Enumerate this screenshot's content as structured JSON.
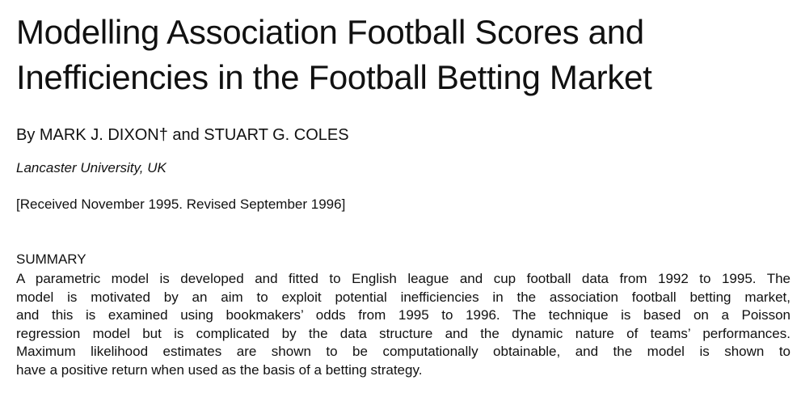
{
  "paper": {
    "title_lines": [
      "Modelling Association Football Scores and",
      "Inefficiencies in the Football Betting Market"
    ],
    "byline": "By MARK J. DIXON† and STUART G. COLES",
    "affiliation": "Lancaster University, UK",
    "received": "[Received November 1995. Revised September 1996]",
    "summary_heading": "SUMMARY",
    "summary_lines": [
      "A parametric model is developed and fitted to English league and cup football data from 1992 to 1995. The",
      "model is motivated by an aim to exploit potential inefficiencies in the association football betting market,",
      "and this is examined using bookmakers’ odds from 1995 to 1996. The technique is based on a Poisson",
      "regression model but is complicated by the data structure and the dynamic nature of teams’ performances.",
      "Maximum likelihood estimates are shown to be computationally obtainable, and the model is shown to",
      "have a positive return when used as the basis of a betting strategy."
    ]
  }
}
